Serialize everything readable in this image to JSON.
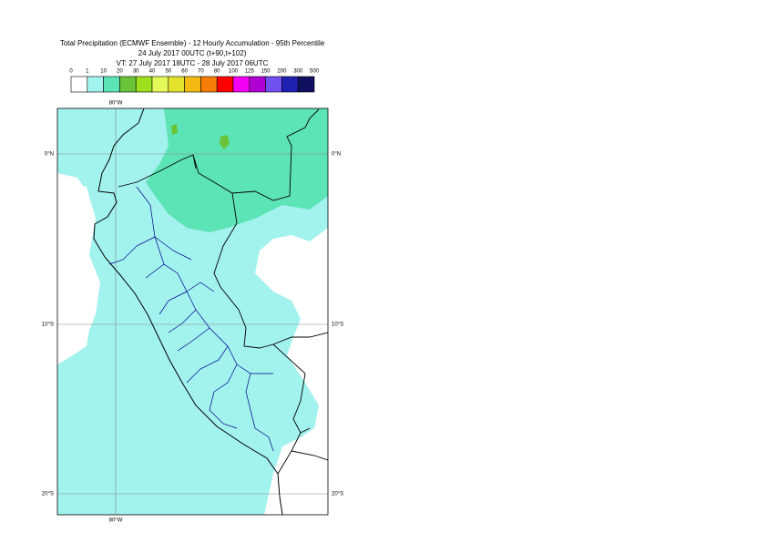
{
  "title_lines": [
    "Total Precipitation (ECMWF Ensemble) - 12 Hourly Accumulation - 95th Percentile",
    "24 July 2017 00UTC (t+90,t+102)",
    "VT: 27 July 2017 18UTC - 28 July 2017 06UTC"
  ],
  "legend": {
    "bounds": [
      0,
      1,
      10,
      20,
      30,
      40,
      50,
      60,
      70,
      80,
      100,
      125,
      150,
      200,
      300,
      500
    ],
    "colors": [
      "#ffffff",
      "#a2f2ee",
      "#5de4b6",
      "#6ac43a",
      "#9ee01c",
      "#e4f85a",
      "#e2e22a",
      "#f2ba12",
      "#f87c08",
      "#ff0000",
      "#f400f4",
      "#b000d4",
      "#7050f0",
      "#2020b0",
      "#101060"
    ]
  },
  "grid_labels": {
    "top": "80°W",
    "bottom": "80°W",
    "left_0": "0°N",
    "right_0": "0°N",
    "left_10": "10°S",
    "right_10": "10°S",
    "left_20": "20°S",
    "right_20": "20°S"
  }
}
